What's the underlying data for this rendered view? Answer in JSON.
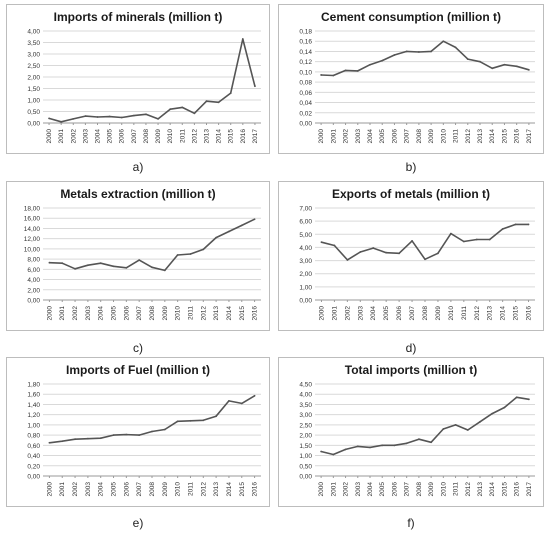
{
  "chart_data": [
    {
      "type": "line",
      "title": "Imports of minerals (million t)",
      "caption": "a)",
      "xlabel": "",
      "ylabel": "",
      "categories": [
        "2000",
        "2001",
        "2002",
        "2003",
        "2004",
        "2005",
        "2006",
        "2007",
        "2008",
        "2009",
        "2010",
        "2011",
        "2012",
        "2013",
        "2014",
        "2015",
        "2016",
        "2017"
      ],
      "values": [
        0.2,
        0.05,
        0.18,
        0.3,
        0.26,
        0.28,
        0.24,
        0.32,
        0.38,
        0.18,
        0.6,
        0.68,
        0.42,
        0.95,
        0.9,
        1.3,
        3.65,
        1.6
      ],
      "ylim": [
        0,
        4
      ],
      "yticks": [
        "0,00",
        "0,50",
        "1,00",
        "1,50",
        "2,00",
        "2,50",
        "3,00",
        "3,50",
        "4,00"
      ],
      "grid": true,
      "color": "#555555"
    },
    {
      "type": "line",
      "title": "Cement consumption  (million t)",
      "caption": "b)",
      "xlabel": "",
      "ylabel": "",
      "categories": [
        "2000",
        "2001",
        "2002",
        "2003",
        "2004",
        "2005",
        "2006",
        "2007",
        "2008",
        "2009",
        "2010",
        "2011",
        "2012",
        "2013",
        "2014",
        "2015",
        "2016",
        "2017"
      ],
      "values": [
        0.094,
        0.093,
        0.103,
        0.102,
        0.114,
        0.122,
        0.133,
        0.14,
        0.139,
        0.14,
        0.16,
        0.148,
        0.125,
        0.12,
        0.107,
        0.114,
        0.111,
        0.104
      ],
      "ylim": [
        0,
        0.18
      ],
      "yticks": [
        "0,00",
        "0,02",
        "0,04",
        "0,06",
        "0,08",
        "0,10",
        "0,12",
        "0,14",
        "0,16",
        "0,18"
      ],
      "grid": true,
      "color": "#555555"
    },
    {
      "type": "line",
      "title": "Metals extraction  (million t)",
      "caption": "c)",
      "xlabel": "",
      "ylabel": "",
      "categories": [
        "2000",
        "2001",
        "2002",
        "2003",
        "2004",
        "2005",
        "2006",
        "2007",
        "2008",
        "2009",
        "2010",
        "2011",
        "2012",
        "2013",
        "2014",
        "2015",
        "2016"
      ],
      "values": [
        7.3,
        7.2,
        6.1,
        6.8,
        7.2,
        6.6,
        6.3,
        7.8,
        6.4,
        5.8,
        8.8,
        9.0,
        9.9,
        12.2,
        13.4,
        14.6,
        15.8
      ],
      "ylim": [
        0,
        18
      ],
      "yticks": [
        "0,00",
        "2,00",
        "4,00",
        "6,00",
        "8,00",
        "10,00",
        "12,00",
        "14,00",
        "16,00",
        "18,00"
      ],
      "grid": true,
      "color": "#555555"
    },
    {
      "type": "line",
      "title": "Exports of metals (million t)",
      "caption": "d)",
      "xlabel": "",
      "ylabel": "",
      "categories": [
        "2000",
        "2001",
        "2002",
        "2003",
        "2004",
        "2005",
        "2006",
        "2007",
        "2008",
        "2009",
        "2010",
        "2011",
        "2012",
        "2013",
        "2014",
        "2015",
        "2016"
      ],
      "values": [
        4.4,
        4.15,
        3.05,
        3.65,
        3.95,
        3.6,
        3.55,
        4.5,
        3.1,
        3.55,
        5.05,
        4.45,
        4.6,
        4.6,
        5.4,
        5.75,
        5.75
      ],
      "ylim": [
        0,
        7
      ],
      "yticks": [
        "0,00",
        "1,00",
        "2,00",
        "3,00",
        "4,00",
        "5,00",
        "6,00",
        "7,00"
      ],
      "grid": true,
      "color": "#555555"
    },
    {
      "type": "line",
      "title": "Imports of Fuel  (million t)",
      "caption": "e)",
      "xlabel": "",
      "ylabel": "",
      "categories": [
        "2000",
        "2001",
        "2002",
        "2003",
        "2004",
        "2005",
        "2006",
        "2007",
        "2008",
        "2009",
        "2010",
        "2011",
        "2012",
        "2013",
        "2014",
        "2015",
        "2016"
      ],
      "values": [
        0.65,
        0.68,
        0.72,
        0.73,
        0.74,
        0.8,
        0.81,
        0.8,
        0.87,
        0.91,
        1.07,
        1.08,
        1.09,
        1.17,
        1.47,
        1.42,
        1.57
      ],
      "ylim": [
        0,
        1.8
      ],
      "yticks": [
        "0,00",
        "0,20",
        "0,40",
        "0,60",
        "0,80",
        "1,00",
        "1,20",
        "1,40",
        "1,60",
        "1,80"
      ],
      "grid": true,
      "color": "#555555"
    },
    {
      "type": "line",
      "title": "Total imports  (million t)",
      "caption": "f)",
      "xlabel": "",
      "ylabel": "",
      "categories": [
        "2000",
        "2001",
        "2002",
        "2003",
        "2004",
        "2005",
        "2006",
        "2007",
        "2008",
        "2009",
        "2010",
        "2011",
        "2012",
        "2013",
        "2014",
        "2015",
        "2016",
        "2017"
      ],
      "values": [
        1.2,
        1.05,
        1.3,
        1.45,
        1.4,
        1.5,
        1.5,
        1.6,
        1.8,
        1.65,
        2.3,
        2.5,
        2.25,
        2.65,
        3.05,
        3.35,
        3.85,
        3.75
      ],
      "ylim": [
        0,
        4.5
      ],
      "yticks": [
        "0,00",
        "0,50",
        "1,00",
        "1,50",
        "2,00",
        "2,50",
        "3,00",
        "3,50",
        "4,00",
        "4,50"
      ],
      "grid": true,
      "color": "#555555"
    }
  ]
}
